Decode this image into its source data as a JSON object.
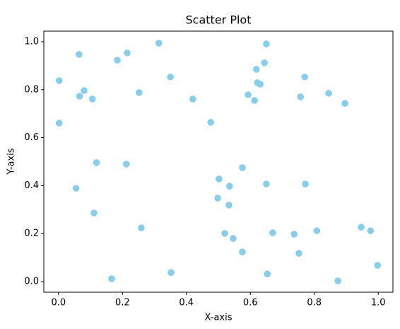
{
  "chart_data": {
    "type": "scatter",
    "title": "Scatter Plot",
    "x_label": "X-axis",
    "y_label": "Y-axis",
    "color": "#87ceeb",
    "x": [
      0.002,
      0.002,
      0.064,
      0.066,
      0.08,
      0.106,
      0.119,
      0.055,
      0.111,
      0.184,
      0.215,
      0.212,
      0.166,
      0.252,
      0.259,
      0.314,
      0.35,
      0.352,
      0.42,
      0.476,
      0.502,
      0.498,
      0.535,
      0.533,
      0.52,
      0.546,
      0.575,
      0.575,
      0.593,
      0.613,
      0.619,
      0.622,
      0.631,
      0.644,
      0.65,
      0.65,
      0.653,
      0.67,
      0.757,
      0.77,
      0.772,
      0.737,
      0.752,
      0.808,
      0.845,
      0.896,
      0.874,
      0.947,
      0.976,
      0.998
    ],
    "values": [
      0.838,
      0.661,
      0.947,
      0.773,
      0.796,
      0.761,
      0.496,
      0.389,
      0.286,
      0.923,
      0.953,
      0.49,
      0.012,
      0.788,
      0.224,
      0.994,
      0.853,
      0.038,
      0.761,
      0.664,
      0.428,
      0.348,
      0.398,
      0.319,
      0.201,
      0.18,
      0.475,
      0.124,
      0.779,
      0.755,
      0.885,
      0.829,
      0.823,
      0.912,
      0.991,
      0.407,
      0.032,
      0.204,
      0.77,
      0.853,
      0.407,
      0.198,
      0.118,
      0.212,
      0.785,
      0.743,
      0.003,
      0.227,
      0.212,
      0.068
    ],
    "xlim": [
      -0.046,
      1.046
    ],
    "ylim": [
      -0.044,
      1.044
    ],
    "xticks": [
      {
        "value": 0,
        "label": "0.0"
      },
      {
        "value": 0.2,
        "label": "0.2"
      },
      {
        "value": 0.4,
        "label": "0.4"
      },
      {
        "value": 0.6,
        "label": "0.6"
      },
      {
        "value": 0.8,
        "label": "0.8"
      },
      {
        "value": 1,
        "label": "1.0"
      }
    ],
    "yticks": [
      {
        "value": 0,
        "label": "0.0"
      },
      {
        "value": 0.2,
        "label": "0.2"
      },
      {
        "value": 0.4,
        "label": "0.4"
      },
      {
        "value": 0.6,
        "label": "0.6"
      },
      {
        "value": 0.8,
        "label": "0.8"
      },
      {
        "value": 1,
        "label": "1.0"
      }
    ]
  }
}
